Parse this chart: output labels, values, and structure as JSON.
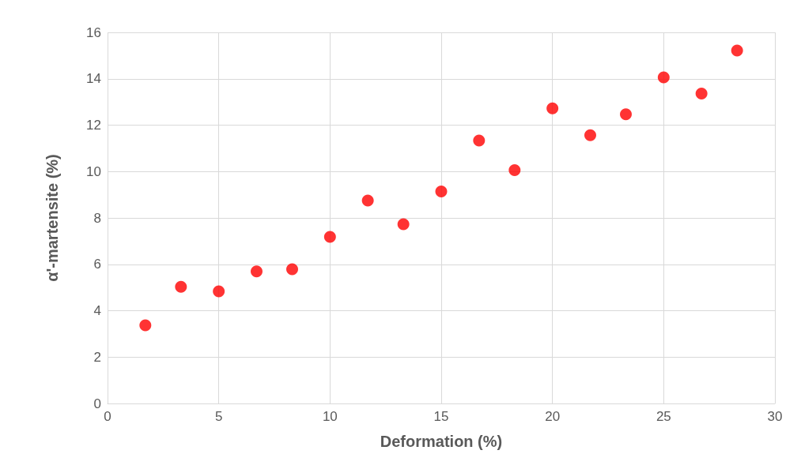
{
  "chart_data": {
    "type": "scatter",
    "xlabel": "Deformation (%)",
    "ylabel": "α'-martensite (%)",
    "x": [
      1.7,
      3.3,
      5,
      6.7,
      8.3,
      10,
      11.7,
      13.3,
      15,
      16.7,
      18.3,
      20,
      21.7,
      23.3,
      25,
      26.7,
      28.3
    ],
    "series": [
      {
        "color": "#ff0000",
        "values": [
          3.37,
          5.03,
          4.83,
          5.69,
          5.79,
          7.18,
          8.75,
          7.73,
          9.14,
          11.34,
          10.06,
          12.72,
          11.57,
          12.47,
          14.06,
          13.36,
          15.22
        ]
      }
    ],
    "xlim": [
      0,
      30
    ],
    "xticks": [
      0,
      5,
      10,
      15,
      20,
      25,
      30
    ],
    "ylim": [
      0,
      16
    ],
    "yticks": [
      0,
      2,
      4,
      6,
      8,
      10,
      12,
      14,
      16
    ],
    "grid": true,
    "marker": "circle"
  }
}
